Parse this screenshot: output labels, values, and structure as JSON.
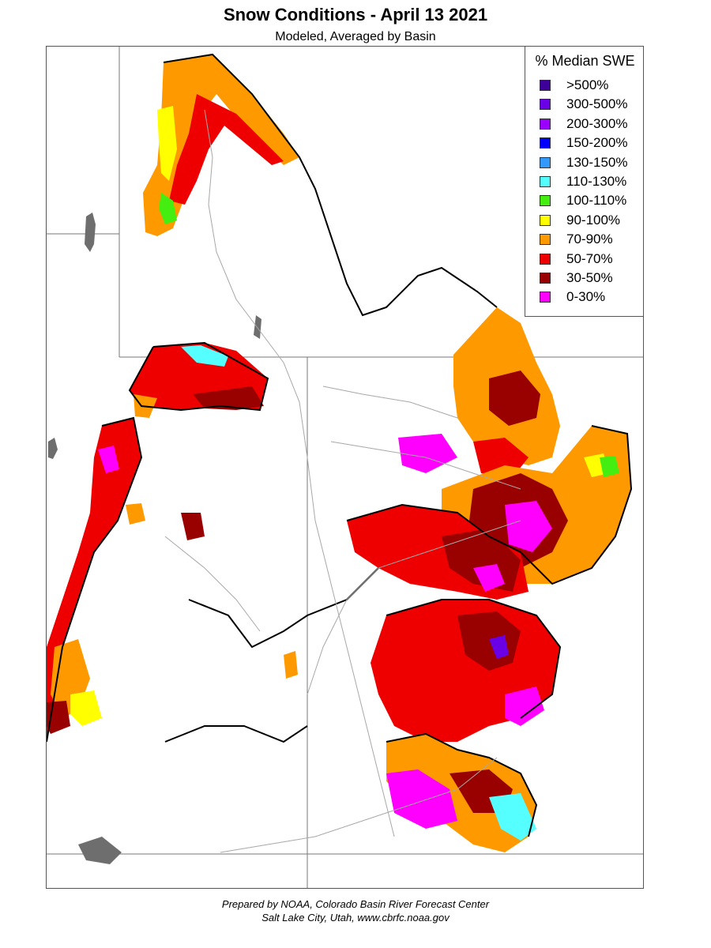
{
  "header": {
    "title": "Snow Conditions - April 13 2021",
    "subtitle": "Modeled, Averaged by Basin"
  },
  "legend": {
    "title": "% Median SWE",
    "items": [
      {
        "label": ">500%",
        "color": "#3d0099"
      },
      {
        "label": "300-500%",
        "color": "#6a00e6"
      },
      {
        "label": "200-300%",
        "color": "#9900ff"
      },
      {
        "label": "150-200%",
        "color": "#0000ff"
      },
      {
        "label": "130-150%",
        "color": "#3399ff"
      },
      {
        "label": "110-130%",
        "color": "#55ffff"
      },
      {
        "label": "100-110%",
        "color": "#44ee11"
      },
      {
        "label": "90-100%",
        "color": "#ffff00"
      },
      {
        "label": "70-90%",
        "color": "#ff9900"
      },
      {
        "label": "50-70%",
        "color": "#ee0000"
      },
      {
        "label": "30-50%",
        "color": "#990000"
      },
      {
        "label": "0-30%",
        "color": "#ff00ff"
      }
    ]
  },
  "credits": {
    "line1": "Prepared by NOAA, Colorado Basin River Forecast Center",
    "line2": "Salt Lake City, Utah, www.cbrfc.noaa.gov"
  }
}
